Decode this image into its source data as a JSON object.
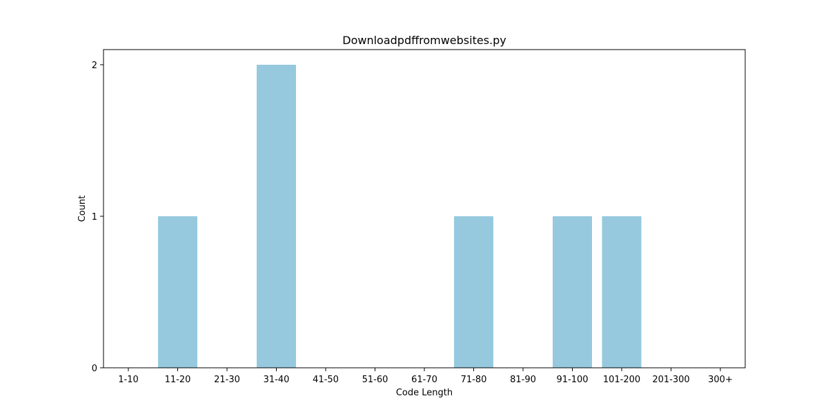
{
  "chart_data": {
    "type": "bar",
    "title": "Downloadpdffromwebsites.py",
    "xlabel": "Code Length",
    "ylabel": "Count",
    "categories": [
      "1-10",
      "11-20",
      "21-30",
      "31-40",
      "41-50",
      "51-60",
      "61-70",
      "71-80",
      "81-90",
      "91-100",
      "101-200",
      "201-300",
      "300+"
    ],
    "values": [
      0,
      1,
      0,
      2,
      0,
      0,
      0,
      1,
      0,
      1,
      1,
      0,
      0
    ],
    "ylim": [
      0,
      2.1
    ],
    "yticks": [
      0,
      1,
      2
    ],
    "grid": false,
    "bar_color": "#96c9de"
  }
}
